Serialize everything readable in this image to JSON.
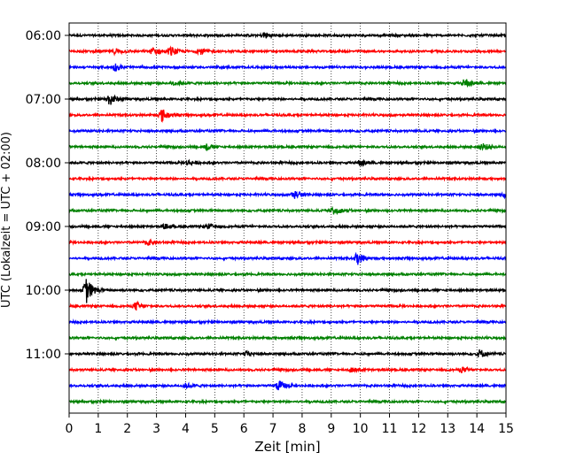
{
  "chart_data": {
    "type": "line",
    "title": "",
    "xlabel": "Zeit  [min]",
    "ylabel": "UTC (Lokalzeit = UTC + 02:00)",
    "xlim": [
      0,
      15
    ],
    "x_ticks": [
      0,
      1,
      2,
      3,
      4,
      5,
      6,
      7,
      8,
      9,
      10,
      11,
      12,
      13,
      14,
      15
    ],
    "x_tick_labels": [
      "0",
      "1",
      "2",
      "3",
      "4",
      "5",
      "6",
      "7",
      "8",
      "9",
      "10",
      "11",
      "12",
      "13",
      "14",
      "15"
    ],
    "y_tick_labels": [
      "06:00",
      "07:00",
      "08:00",
      "09:00",
      "10:00",
      "11:00"
    ],
    "y_tick_rows": [
      0,
      4,
      8,
      12,
      16,
      20
    ],
    "row_minutes": 15,
    "row_count": 24,
    "grid": "vertical dotted",
    "legend": "none",
    "color_cycle": [
      "#000000",
      "#ff0000",
      "#0000ff",
      "#008000"
    ],
    "series": [
      {
        "start": "06:00",
        "color": "#000000",
        "events": [
          {
            "t": 6.7,
            "amp": 0.25
          }
        ]
      },
      {
        "start": "06:15",
        "color": "#ff0000",
        "events": [
          {
            "t": 3.5,
            "amp": 0.3
          },
          {
            "t": 2.9,
            "amp": 0.3
          },
          {
            "t": 1.6,
            "amp": 0.2
          },
          {
            "t": 4.5,
            "amp": 0.2
          }
        ]
      },
      {
        "start": "06:30",
        "color": "#0000ff",
        "events": [
          {
            "t": 1.6,
            "amp": 0.25
          }
        ]
      },
      {
        "start": "06:45",
        "color": "#008000",
        "events": [
          {
            "t": 13.6,
            "amp": 0.3
          },
          {
            "t": 3.6,
            "amp": 0.15
          }
        ]
      },
      {
        "start": "07:00",
        "color": "#000000",
        "events": [
          {
            "t": 1.4,
            "amp": 0.45
          }
        ]
      },
      {
        "start": "07:15",
        "color": "#ff0000",
        "events": [
          {
            "t": 3.2,
            "amp": 0.45
          }
        ]
      },
      {
        "start": "07:30",
        "color": "#0000ff",
        "events": []
      },
      {
        "start": "07:45",
        "color": "#008000",
        "events": [
          {
            "t": 14.2,
            "amp": 0.3
          },
          {
            "t": 4.7,
            "amp": 0.2
          }
        ]
      },
      {
        "start": "08:00",
        "color": "#000000",
        "events": [
          {
            "t": 10.0,
            "amp": 0.2
          },
          {
            "t": 4.1,
            "amp": 0.15
          }
        ]
      },
      {
        "start": "08:15",
        "color": "#ff0000",
        "events": []
      },
      {
        "start": "08:30",
        "color": "#0000ff",
        "events": [
          {
            "t": 7.7,
            "amp": 0.3
          },
          {
            "t": 15.0,
            "amp": 0.25
          }
        ]
      },
      {
        "start": "08:45",
        "color": "#008000",
        "events": [
          {
            "t": 9.1,
            "amp": 0.35
          }
        ]
      },
      {
        "start": "09:00",
        "color": "#000000",
        "events": [
          {
            "t": 3.3,
            "amp": 0.15
          },
          {
            "t": 4.8,
            "amp": 0.15
          }
        ]
      },
      {
        "start": "09:15",
        "color": "#ff0000",
        "events": [
          {
            "t": 2.7,
            "amp": 0.2
          }
        ]
      },
      {
        "start": "09:30",
        "color": "#0000ff",
        "events": [
          {
            "t": 9.9,
            "amp": 0.45
          }
        ]
      },
      {
        "start": "09:45",
        "color": "#008000",
        "events": []
      },
      {
        "start": "10:00",
        "color": "#000000",
        "events": [
          {
            "t": 0.6,
            "amp": 0.9
          }
        ]
      },
      {
        "start": "10:15",
        "color": "#ff0000",
        "events": [
          {
            "t": 2.3,
            "amp": 0.3
          }
        ]
      },
      {
        "start": "10:30",
        "color": "#0000ff",
        "events": []
      },
      {
        "start": "10:45",
        "color": "#008000",
        "events": []
      },
      {
        "start": "11:00",
        "color": "#000000",
        "events": [
          {
            "t": 14.1,
            "amp": 0.3
          },
          {
            "t": 6.1,
            "amp": 0.15
          }
        ]
      },
      {
        "start": "11:15",
        "color": "#ff0000",
        "events": [
          {
            "t": 9.7,
            "amp": 0.15
          },
          {
            "t": 13.5,
            "amp": 0.15
          }
        ]
      },
      {
        "start": "11:30",
        "color": "#0000ff",
        "events": [
          {
            "t": 7.2,
            "amp": 0.35
          },
          {
            "t": 4.0,
            "amp": 0.15
          }
        ]
      },
      {
        "start": "11:45",
        "color": "#008000",
        "events": []
      }
    ]
  }
}
